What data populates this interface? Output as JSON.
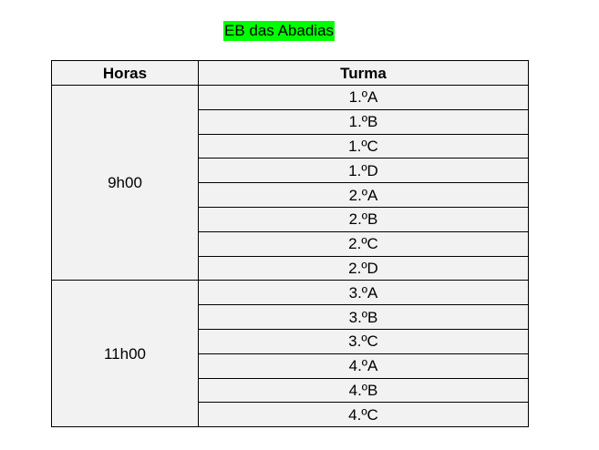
{
  "title": "EB das Abadias",
  "table": {
    "headers": [
      "Horas",
      "Turma"
    ],
    "groups": [
      {
        "hora": "9h00",
        "turmas": [
          "1.ºA",
          "1.ºB",
          "1.ºC",
          "1.ºD",
          "2.ºA",
          "2.ºB",
          "2.ºC",
          "2.ºD"
        ]
      },
      {
        "hora": "11h00",
        "turmas": [
          "3.ºA",
          "3.ºB",
          "3.ºC",
          "4.ºA",
          "4.ºB",
          "4.ºC"
        ]
      }
    ]
  },
  "colors": {
    "highlight": "#00ff00",
    "cell_background": "#f2f2f2"
  }
}
